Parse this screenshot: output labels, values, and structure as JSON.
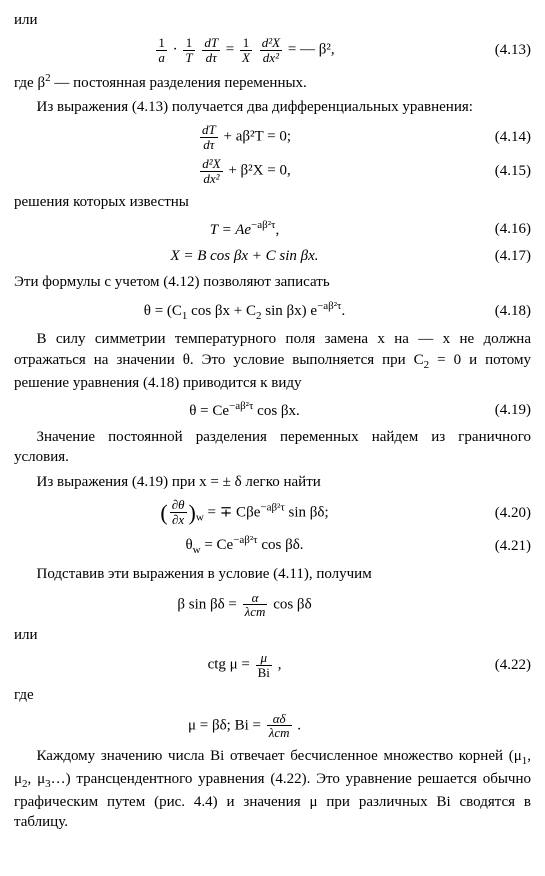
{
  "p1": "или",
  "eq413": "(4.13)",
  "p2a": "где β",
  "p2b": " — постоянная разделения переменных.",
  "p3": "Из выражения (4.13) получается два дифференциальных уравнения:",
  "eq414": "(4.14)",
  "eq415": "(4.15)",
  "p4": "решения которых известны",
  "eq416_lhs": "T = Ae",
  "eq416_exp": "−aβ²τ",
  "eq416": "(4.16)",
  "eq417_body": "X = B cos βx + C sin βx.",
  "eq417": "(4.17)",
  "p5": "Эти формулы с учетом (4.12) позволяют записать",
  "eq418_a": "θ = (C",
  "eq418_b": " cos βx + C",
  "eq418_c": " sin βx) e",
  "eq418_exp": "−aβ²τ",
  "eq418": "(4.18)",
  "p6a": "В силу симметрии температурного поля замена x на — x не должна отражаться на значении θ. Это условие выполняется при C",
  "p6b": " = 0 и потому решение уравнения (4.18) приводится к виду",
  "eq419_a": "θ = Ce",
  "eq419_exp": "−aβ²τ",
  "eq419_b": " cos βx.",
  "eq419": "(4.19)",
  "p7": "Значение постоянной разделения переменных найдем из граничного условия.",
  "p8": "Из выражения (4.19) при x =  ± δ легко найти",
  "eq420_a": " = ∓ Cβe",
  "eq420_exp": "−aβ²τ",
  "eq420_b": " sin βδ;",
  "eq420": "(4.20)",
  "eq421_a": "θ",
  "eq421_sub": "w",
  "eq421_b": " = Ce",
  "eq421_exp": "−aβ²τ",
  "eq421_c": " cos βδ.",
  "eq421": "(4.21)",
  "p9": "Подставив эти выражения в условие (4.11), получим",
  "eqA_a": "β sin βδ = ",
  "eqA_b": " cos βδ",
  "p10": "или",
  "eq422_a": "ctg μ = ",
  "eq422_b": " ,",
  "eq422": "(4.22)",
  "p11": "где",
  "eqB_a": "μ = βδ;   Bi = ",
  "eqB_b": " .",
  "p12a": "Каждому значению числа Bi отвечает бесчисленное множество корней (μ",
  "p12b": ", μ",
  "p12c": ", μ",
  "p12d": "…) трансцендентного уравнения (4.22). Это уравнение решается обычно графическим путем (рис. 4.4) и значения μ при различных Bi сводятся в таблицу.",
  "frac": {
    "one_a": "1",
    "a": "a",
    "one_T": "1",
    "T": "T",
    "dT": "dT",
    "dtau": "dτ",
    "one_X": "1",
    "X": "X",
    "d2X": "d²X",
    "dx2": "dx²",
    "alpha": "α",
    "lambda": "λст",
    "mu": "μ",
    "Bi": "Bi",
    "alphadelta": "αδ",
    "dtheta": "∂θ",
    "dx": "∂x"
  },
  "misc": {
    "eq413_mid": " = ",
    "eq413_rhs": " = — β²,",
    "eq414_lhs": " + aβ²T = 0;",
    "eq415_lhs": " + β²X = 0,",
    "comma": ",",
    "dot": "."
  }
}
